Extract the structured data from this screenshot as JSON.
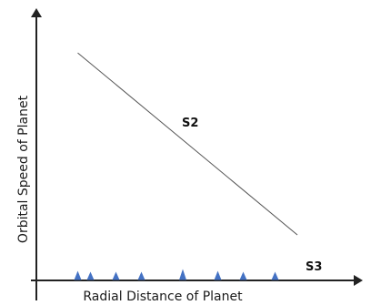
{
  "chart_data": {
    "type": "line",
    "title": "",
    "xlabel": "Radial Distance of Planet",
    "ylabel": "Orbital Speed of Planet",
    "xlim": [
      0,
      100
    ],
    "ylim": [
      0,
      100
    ],
    "grid": false,
    "series": [
      {
        "name": "S2",
        "kind": "line",
        "color": "#555555",
        "x": [
          13,
          82
        ],
        "y": [
          85,
          17
        ]
      },
      {
        "name": "S3",
        "kind": "markers",
        "color": "#4472c4",
        "marker": "triangle",
        "x": [
          13,
          17,
          25,
          33,
          46,
          57,
          65,
          75
        ],
        "y": [
          1.5,
          1.0,
          1.0,
          1.0,
          2.5,
          1.5,
          1.0,
          1.0
        ]
      }
    ]
  }
}
